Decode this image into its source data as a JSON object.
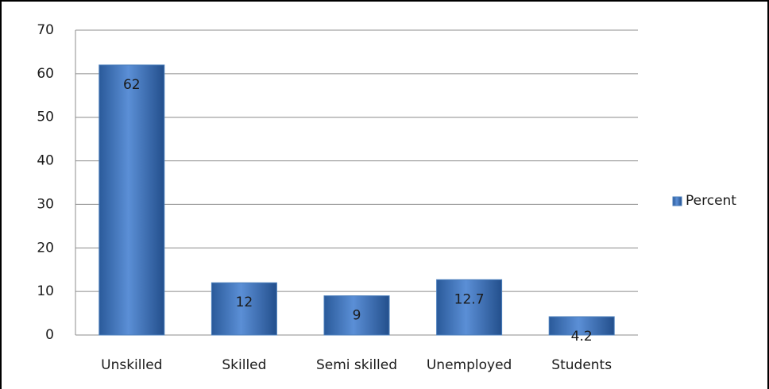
{
  "chart_data": {
    "type": "bar",
    "categories": [
      "Unskilled",
      "Skilled",
      "Semi skilled",
      "Unemployed",
      "Students"
    ],
    "series": [
      {
        "name": "Percent",
        "color": "#4a7ebb",
        "values": [
          62,
          12,
          9,
          12.7,
          4.2
        ]
      }
    ],
    "ylim": [
      0,
      70
    ],
    "yticks": [
      0,
      10,
      20,
      30,
      40,
      50,
      60,
      70
    ],
    "grid": true,
    "legend": "right",
    "data_labels": true
  }
}
